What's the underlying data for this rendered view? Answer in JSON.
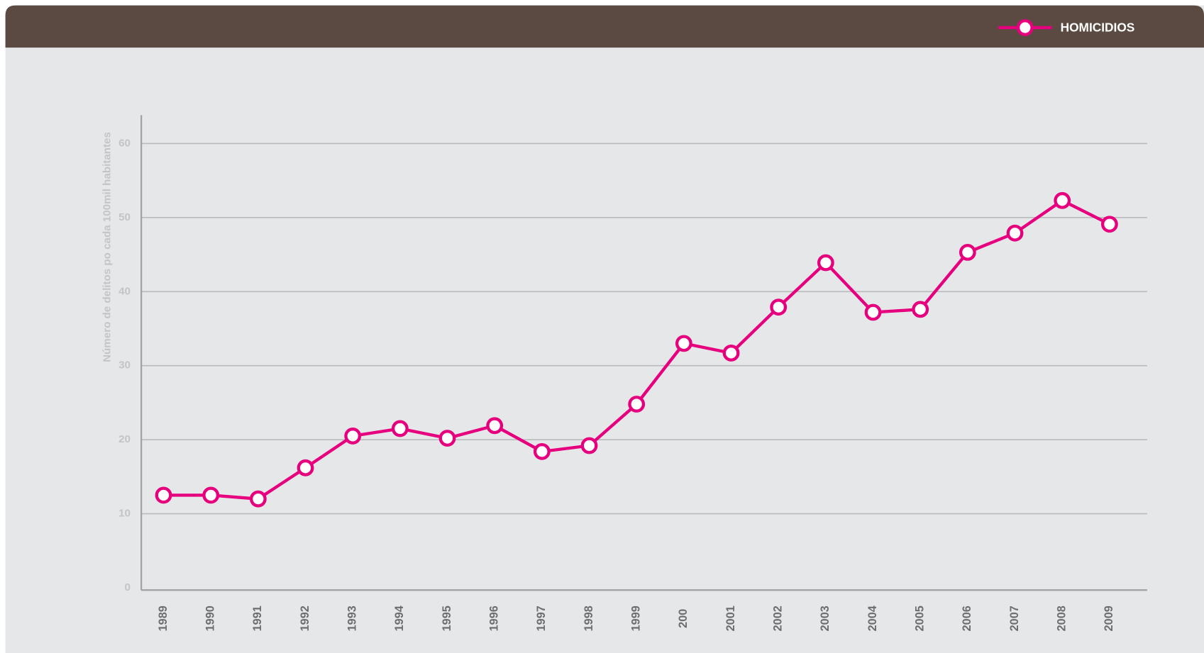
{
  "chart_data": {
    "type": "line",
    "y_label": "Número de delitos po cada 100mil habitantes",
    "categories": [
      "1989",
      "1990",
      "1991",
      "1992",
      "1993",
      "1994",
      "1995",
      "1996",
      "1997",
      "1998",
      "1999",
      "200",
      "2001",
      "2002",
      "2003",
      "2004",
      "2005",
      "2006",
      "2007",
      "2008",
      "2009"
    ],
    "series": [
      {
        "name": "HOMICIDIOS",
        "color": "#e6007e",
        "values": [
          12.5,
          12.5,
          12.0,
          16.2,
          20.5,
          21.5,
          20.2,
          21.9,
          18.4,
          19.2,
          24.8,
          33.0,
          31.7,
          37.9,
          43.9,
          37.2,
          37.6,
          45.3,
          47.9,
          52.3,
          49.1
        ]
      }
    ],
    "ylim": [
      0,
      60
    ],
    "yticks": [
      0,
      10,
      20,
      30,
      40,
      50,
      60
    ],
    "grid": true,
    "legend": "top-right"
  }
}
